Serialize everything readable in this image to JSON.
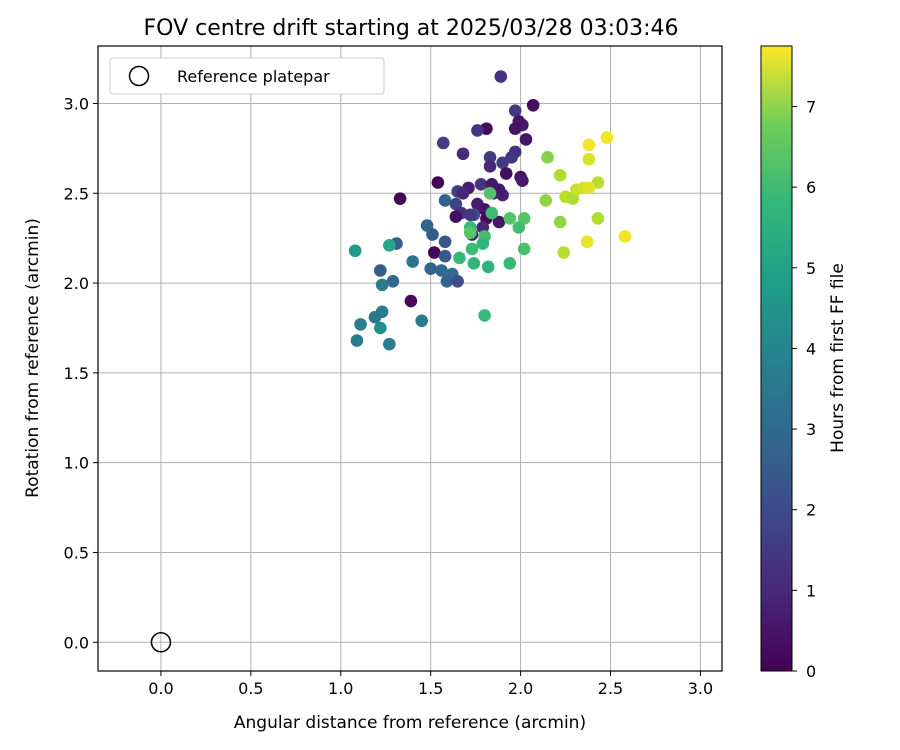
{
  "chart_data": {
    "type": "scatter",
    "title": "FOV centre drift starting at 2025/03/28 03:03:46",
    "xlabel": "Angular distance from reference (arcmin)",
    "ylabel": "Rotation from reference (arcmin)",
    "xlim": [
      -0.35,
      3.12
    ],
    "ylim": [
      -0.16,
      3.32
    ],
    "xticks": [
      0.0,
      0.5,
      1.0,
      1.5,
      2.0,
      2.5,
      3.0
    ],
    "yticks": [
      0.0,
      0.5,
      1.0,
      1.5,
      2.0,
      2.5,
      3.0
    ],
    "grid": true,
    "legend": {
      "placement": "upper-left",
      "entries": [
        "Reference platepar"
      ]
    },
    "reference_point": {
      "x": 0.0,
      "y": 0.0
    },
    "colorbar": {
      "label": "Hours from first FF file",
      "colormap": "viridis",
      "range": [
        0,
        7.75
      ],
      "ticks": [
        0,
        1,
        2,
        3,
        4,
        5,
        6,
        7
      ]
    },
    "points": [
      {
        "x": 1.89,
        "y": 3.15,
        "c": 1.1
      },
      {
        "x": 2.07,
        "y": 2.99,
        "c": 0.3
      },
      {
        "x": 1.97,
        "y": 2.96,
        "c": 1.3
      },
      {
        "x": 1.99,
        "y": 2.9,
        "c": 0.4
      },
      {
        "x": 2.01,
        "y": 2.88,
        "c": 0.5
      },
      {
        "x": 1.97,
        "y": 2.86,
        "c": 0.4
      },
      {
        "x": 1.81,
        "y": 2.86,
        "c": 0.2
      },
      {
        "x": 1.76,
        "y": 2.85,
        "c": 1.2
      },
      {
        "x": 2.03,
        "y": 2.8,
        "c": 0.4
      },
      {
        "x": 1.57,
        "y": 2.78,
        "c": 1.4
      },
      {
        "x": 1.97,
        "y": 2.73,
        "c": 1.1
      },
      {
        "x": 1.68,
        "y": 2.72,
        "c": 1.0
      },
      {
        "x": 1.83,
        "y": 2.7,
        "c": 1.4
      },
      {
        "x": 1.95,
        "y": 2.7,
        "c": 1.2
      },
      {
        "x": 1.9,
        "y": 2.67,
        "c": 1.3
      },
      {
        "x": 1.83,
        "y": 2.65,
        "c": 0.9
      },
      {
        "x": 1.92,
        "y": 2.61,
        "c": 0.3
      },
      {
        "x": 2.0,
        "y": 2.59,
        "c": 0.4
      },
      {
        "x": 2.01,
        "y": 2.57,
        "c": 0.6
      },
      {
        "x": 1.54,
        "y": 2.56,
        "c": 0.1
      },
      {
        "x": 1.78,
        "y": 2.55,
        "c": 1.2
      },
      {
        "x": 1.84,
        "y": 2.55,
        "c": 0.5
      },
      {
        "x": 1.71,
        "y": 2.53,
        "c": 0.6
      },
      {
        "x": 1.65,
        "y": 2.51,
        "c": 1.5
      },
      {
        "x": 1.68,
        "y": 2.5,
        "c": 0.8
      },
      {
        "x": 1.85,
        "y": 2.5,
        "c": 1.0
      },
      {
        "x": 1.9,
        "y": 2.49,
        "c": 0.7
      },
      {
        "x": 1.88,
        "y": 2.52,
        "c": 0.5
      },
      {
        "x": 1.33,
        "y": 2.47,
        "c": 0.1
      },
      {
        "x": 1.58,
        "y": 2.46,
        "c": 2.4
      },
      {
        "x": 1.64,
        "y": 2.44,
        "c": 1.6
      },
      {
        "x": 1.76,
        "y": 2.44,
        "c": 0.6
      },
      {
        "x": 1.8,
        "y": 2.41,
        "c": 0.4
      },
      {
        "x": 1.67,
        "y": 2.39,
        "c": 1.1
      },
      {
        "x": 1.74,
        "y": 2.38,
        "c": 1.9
      },
      {
        "x": 1.72,
        "y": 2.38,
        "c": 1.3
      },
      {
        "x": 1.64,
        "y": 2.37,
        "c": 0.3
      },
      {
        "x": 1.81,
        "y": 2.36,
        "c": 0.2
      },
      {
        "x": 1.88,
        "y": 2.34,
        "c": 0.5
      },
      {
        "x": 1.79,
        "y": 2.31,
        "c": 0.9
      },
      {
        "x": 1.48,
        "y": 2.32,
        "c": 2.5
      },
      {
        "x": 1.51,
        "y": 2.27,
        "c": 2.3
      },
      {
        "x": 1.73,
        "y": 2.27,
        "c": 0.8
      },
      {
        "x": 1.58,
        "y": 2.23,
        "c": 2.1
      },
      {
        "x": 1.31,
        "y": 2.22,
        "c": 2.3
      },
      {
        "x": 1.52,
        "y": 2.17,
        "c": 0.1
      },
      {
        "x": 1.58,
        "y": 2.15,
        "c": 2.2
      },
      {
        "x": 1.4,
        "y": 2.12,
        "c": 3.0
      },
      {
        "x": 1.5,
        "y": 2.08,
        "c": 2.5
      },
      {
        "x": 1.56,
        "y": 2.07,
        "c": 2.6
      },
      {
        "x": 1.62,
        "y": 2.05,
        "c": 2.7
      },
      {
        "x": 1.22,
        "y": 2.07,
        "c": 2.2
      },
      {
        "x": 1.59,
        "y": 2.01,
        "c": 2.4
      },
      {
        "x": 1.65,
        "y": 2.01,
        "c": 1.9
      },
      {
        "x": 1.29,
        "y": 2.01,
        "c": 2.6
      },
      {
        "x": 1.23,
        "y": 1.99,
        "c": 3.2
      },
      {
        "x": 1.39,
        "y": 1.9,
        "c": 0.2
      },
      {
        "x": 1.23,
        "y": 1.84,
        "c": 3.3
      },
      {
        "x": 1.19,
        "y": 1.81,
        "c": 3.1
      },
      {
        "x": 1.45,
        "y": 1.79,
        "c": 3.2
      },
      {
        "x": 1.11,
        "y": 1.77,
        "c": 3.3
      },
      {
        "x": 1.22,
        "y": 1.75,
        "c": 3.8
      },
      {
        "x": 1.09,
        "y": 1.68,
        "c": 3.2
      },
      {
        "x": 1.27,
        "y": 1.66,
        "c": 3.3
      },
      {
        "x": 1.08,
        "y": 2.18,
        "c": 4.2
      },
      {
        "x": 1.27,
        "y": 2.21,
        "c": 4.6
      },
      {
        "x": 1.83,
        "y": 2.5,
        "c": 5.6
      },
      {
        "x": 1.84,
        "y": 2.39,
        "c": 5.3
      },
      {
        "x": 1.72,
        "y": 2.31,
        "c": 5.2
      },
      {
        "x": 1.72,
        "y": 2.28,
        "c": 5.7
      },
      {
        "x": 1.8,
        "y": 2.26,
        "c": 5.4
      },
      {
        "x": 1.79,
        "y": 2.22,
        "c": 5.1
      },
      {
        "x": 1.73,
        "y": 2.19,
        "c": 5.3
      },
      {
        "x": 1.66,
        "y": 2.14,
        "c": 5.2
      },
      {
        "x": 1.74,
        "y": 2.11,
        "c": 5.1
      },
      {
        "x": 1.82,
        "y": 2.09,
        "c": 5.0
      },
      {
        "x": 1.94,
        "y": 2.11,
        "c": 5.2
      },
      {
        "x": 1.94,
        "y": 2.36,
        "c": 5.6
      },
      {
        "x": 2.02,
        "y": 2.36,
        "c": 5.7
      },
      {
        "x": 1.99,
        "y": 2.31,
        "c": 5.4
      },
      {
        "x": 2.02,
        "y": 2.19,
        "c": 5.5
      },
      {
        "x": 1.8,
        "y": 1.82,
        "c": 5.2
      },
      {
        "x": 2.15,
        "y": 2.7,
        "c": 6.3
      },
      {
        "x": 2.22,
        "y": 2.6,
        "c": 6.8
      },
      {
        "x": 2.14,
        "y": 2.46,
        "c": 6.4
      },
      {
        "x": 2.25,
        "y": 2.48,
        "c": 6.9
      },
      {
        "x": 2.29,
        "y": 2.47,
        "c": 6.8
      },
      {
        "x": 2.22,
        "y": 2.34,
        "c": 6.4
      },
      {
        "x": 2.24,
        "y": 2.17,
        "c": 6.9
      },
      {
        "x": 2.43,
        "y": 2.36,
        "c": 6.8
      },
      {
        "x": 2.43,
        "y": 2.56,
        "c": 6.9
      },
      {
        "x": 2.31,
        "y": 2.52,
        "c": 7.1
      },
      {
        "x": 2.35,
        "y": 2.53,
        "c": 7.2
      },
      {
        "x": 2.38,
        "y": 2.53,
        "c": 7.4
      },
      {
        "x": 2.38,
        "y": 2.69,
        "c": 7.3
      },
      {
        "x": 2.38,
        "y": 2.77,
        "c": 7.6
      },
      {
        "x": 2.48,
        "y": 2.81,
        "c": 7.6
      },
      {
        "x": 2.37,
        "y": 2.23,
        "c": 7.5
      },
      {
        "x": 2.58,
        "y": 2.26,
        "c": 7.6
      }
    ]
  }
}
